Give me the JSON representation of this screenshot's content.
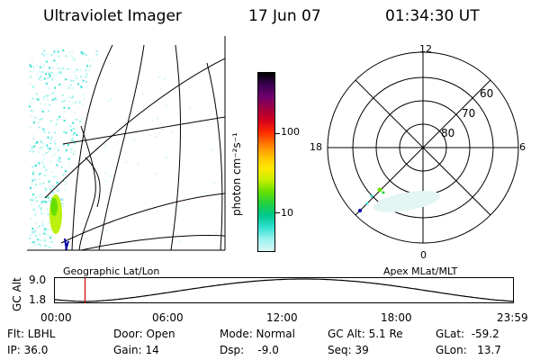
{
  "header": {
    "instrument": "Ultraviolet Imager",
    "date": "17 Jun 07",
    "time": "01:34:30 UT"
  },
  "left_panel": {
    "label": "Geographic Lat/Lon"
  },
  "colorbar": {
    "unit_label": "photon cm⁻²s⁻¹",
    "ticks": [
      "100",
      "10"
    ],
    "colors": [
      "#000000",
      "#3a0050",
      "#6e0070",
      "#a00040",
      "#d2001e",
      "#ff2a00",
      "#ff7a00",
      "#ffbe00",
      "#ffe800",
      "#c8f000",
      "#66e000",
      "#22d040",
      "#00c890",
      "#30e0d0",
      "#9cf2ee",
      "#d6f8f6"
    ]
  },
  "polar_panel": {
    "label": "Apex MLat/MLT",
    "mlt_labels": {
      "top": "12",
      "bottom": "0",
      "left": "18",
      "right": "6"
    },
    "lat_labels": [
      "60",
      "70",
      "80"
    ]
  },
  "altitude_track": {
    "ylabel": "GC Alt",
    "ytick_top": "9.0",
    "ytick_bottom": "1.8",
    "xticks": [
      "00:00",
      "06:00",
      "12:00",
      "18:00",
      "23:59"
    ],
    "marker_time_hours": 1.575,
    "marker_color": "#cc0000"
  },
  "status": {
    "filter": "Flt: LBHL",
    "ip": "IP: 36.0",
    "door": "Door: Open",
    "gain": "Gain: 14",
    "mode": "Mode: Normal",
    "dsp": "Dsp:    -9.0",
    "gc_alt": "GC Alt: 5.1 Re",
    "seq": "Seq: 39",
    "glat": "GLat:  -59.2",
    "glon": "GLon:   13.7"
  }
}
